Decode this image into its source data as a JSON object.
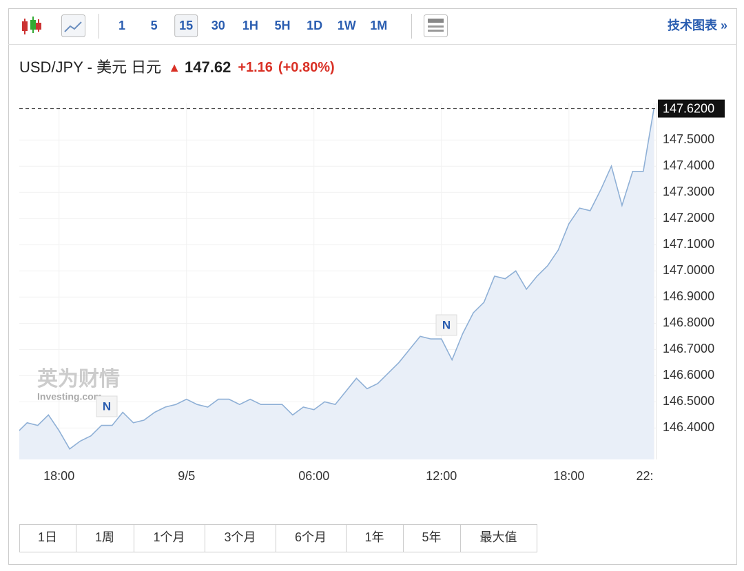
{
  "toolbar": {
    "intervals": [
      "1",
      "5",
      "15",
      "30",
      "1H",
      "5H",
      "1D",
      "1W",
      "1M"
    ],
    "selected": "15",
    "link": "技术图表 »"
  },
  "header": {
    "pair": "USD/JPY - 美元 日元",
    "price": "147.62",
    "change": "+1.16",
    "change_pct": "(+0.80%)"
  },
  "watermark": {
    "cn": "英为财情",
    "en": "Investing.com"
  },
  "ranges": [
    "1日",
    "1周",
    "1个月",
    "3个月",
    "6个月",
    "1年",
    "5年",
    "最大值"
  ],
  "chart_data": {
    "type": "area",
    "color": "#8fb0d6",
    "fill": "#e9eff8",
    "categories": [
      null,
      null,
      null,
      null,
      "18:00",
      null,
      null,
      null,
      null,
      null,
      null,
      null,
      null,
      null,
      null,
      null,
      "9/5",
      null,
      null,
      null,
      null,
      null,
      null,
      null,
      null,
      null,
      null,
      null,
      "06:00",
      null,
      null,
      null,
      null,
      null,
      null,
      null,
      null,
      null,
      null,
      null,
      "12:00",
      null,
      null,
      null,
      null,
      null,
      null,
      null,
      null,
      null,
      null,
      null,
      "18:00",
      null,
      null,
      null,
      null,
      null,
      null,
      null,
      "22:"
    ],
    "values": [
      146.38,
      146.42,
      146.41,
      146.45,
      146.39,
      146.32,
      146.35,
      146.37,
      146.41,
      146.41,
      146.46,
      146.42,
      146.43,
      146.46,
      146.48,
      146.49,
      146.51,
      146.49,
      146.48,
      146.51,
      146.51,
      146.49,
      146.51,
      146.49,
      146.49,
      146.49,
      146.45,
      146.48,
      146.47,
      146.5,
      146.49,
      146.54,
      146.59,
      146.55,
      146.57,
      146.61,
      146.65,
      146.7,
      146.75,
      146.74,
      146.74,
      146.66,
      146.76,
      146.84,
      146.88,
      146.98,
      146.97,
      147.0,
      146.93,
      146.98,
      147.02,
      147.08,
      147.18,
      147.24,
      147.23,
      147.31,
      147.4,
      147.25,
      147.38,
      147.38,
      147.62
    ],
    "ylim": [
      146.28,
      147.64
    ],
    "yticks": [
      {
        "value": 146.4,
        "label": "146.4000"
      },
      {
        "value": 146.5,
        "label": "146.5000"
      },
      {
        "value": 146.6,
        "label": "146.6000"
      },
      {
        "value": 146.7,
        "label": "146.7000"
      },
      {
        "value": 146.8,
        "label": "146.8000"
      },
      {
        "value": 146.9,
        "label": "146.9000"
      },
      {
        "value": 147.0,
        "label": "147.0000"
      },
      {
        "value": 147.1,
        "label": "147.1000"
      },
      {
        "value": 147.2,
        "label": "147.2000"
      },
      {
        "value": 147.3,
        "label": "147.3000"
      },
      {
        "value": 147.4,
        "label": "147.4000"
      },
      {
        "value": 147.5,
        "label": "147.5000"
      }
    ],
    "current": {
      "value": 147.62,
      "label": "147.6200"
    },
    "annotations": [
      "N",
      "N"
    ],
    "grid": true
  }
}
